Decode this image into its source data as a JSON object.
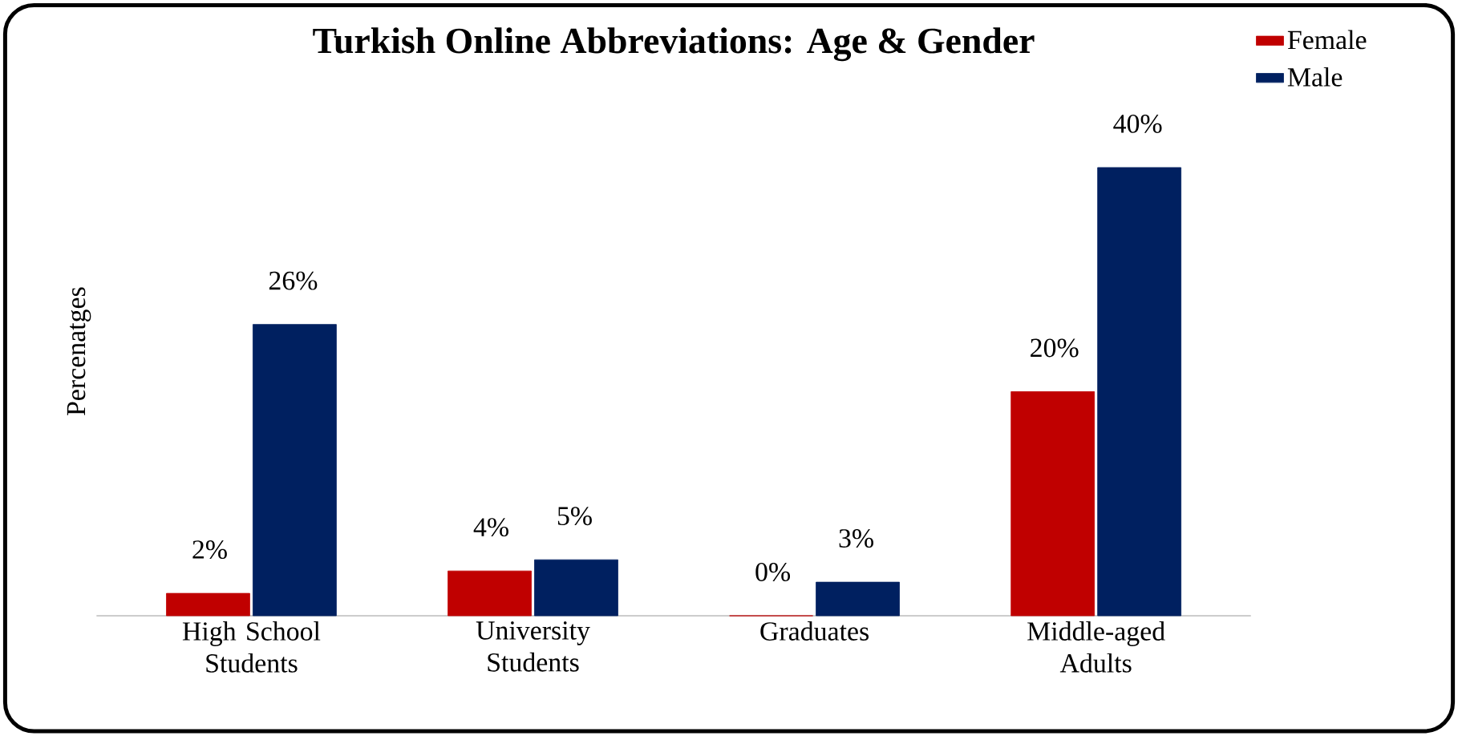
{
  "chart_data": {
    "type": "bar",
    "title": "Turkish Online Abbreviations: Age & Gender",
    "ylabel": "Percenatges",
    "categories": [
      "High School Students",
      "University Students",
      "Graduates",
      "Middle-aged Adults"
    ],
    "series": [
      {
        "name": "Female",
        "color": "#c00000",
        "values": [
          2,
          4,
          0,
          20
        ],
        "value_labels": [
          "2%",
          "4%",
          "0%",
          "20%"
        ]
      },
      {
        "name": "Male",
        "color": "#002060",
        "values": [
          26,
          5,
          3,
          40
        ],
        "value_labels": [
          "26%",
          "5%",
          "3%",
          "40%"
        ]
      }
    ],
    "legend": "top right",
    "grid": false
  }
}
